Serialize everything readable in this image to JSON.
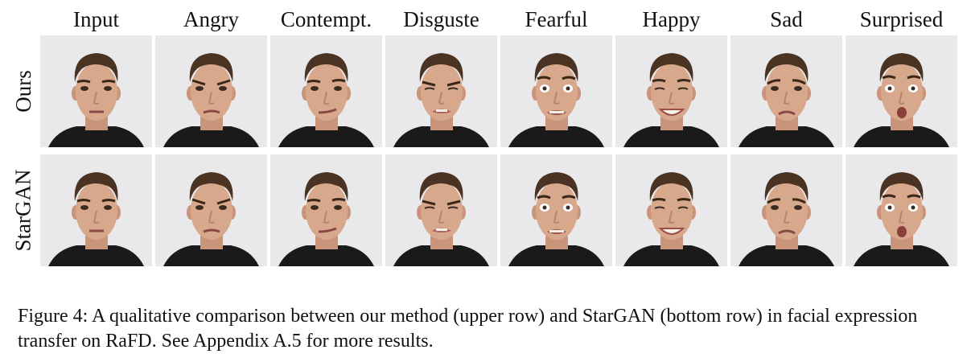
{
  "columns": [
    "Input",
    "Angry",
    "Contempt.",
    "Disguste",
    "Fearful",
    "Happy",
    "Sad",
    "Surprised"
  ],
  "rows": [
    "Ours",
    "StarGAN"
  ],
  "caption": "Figure 4: A qualitative comparison between our method (upper row) and StarGAN (bottom row) in facial expression transfer on RaFD. See Appendix A.5 for more results.",
  "colors": {
    "background": "#e9e9eb",
    "skin": "#d8a88c",
    "hair": "#4a3322",
    "shirt": "#1a1a1a"
  }
}
